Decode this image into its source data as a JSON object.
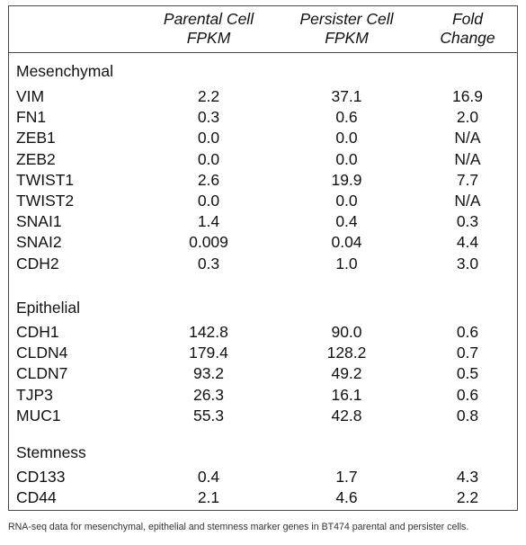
{
  "header": {
    "col1": [
      "Parental Cell",
      "FPKM"
    ],
    "col2": [
      "Persister Cell",
      "FPKM"
    ],
    "col3": [
      "Fold",
      "Change"
    ]
  },
  "sections": [
    {
      "title": "Mesenchymal",
      "rows": [
        {
          "gene": "VIM",
          "parental": "2.2",
          "persister": "37.1",
          "fold": "16.9"
        },
        {
          "gene": "FN1",
          "parental": "0.3",
          "persister": "0.6",
          "fold": "2.0"
        },
        {
          "gene": "ZEB1",
          "parental": "0.0",
          "persister": "0.0",
          "fold": "N/A"
        },
        {
          "gene": "ZEB2",
          "parental": "0.0",
          "persister": "0.0",
          "fold": "N/A"
        },
        {
          "gene": "TWIST1",
          "parental": "2.6",
          "persister": "19.9",
          "fold": "7.7"
        },
        {
          "gene": "TWIST2",
          "parental": "0.0",
          "persister": "0.0",
          "fold": "N/A"
        },
        {
          "gene": "SNAI1",
          "parental": "1.4",
          "persister": "0.4",
          "fold": "0.3"
        },
        {
          "gene": "SNAI2",
          "parental": "0.009",
          "persister": "0.04",
          "fold": "4.4"
        },
        {
          "gene": "CDH2",
          "parental": "0.3",
          "persister": "1.0",
          "fold": "3.0"
        }
      ]
    },
    {
      "title": "Epithelial",
      "rows": [
        {
          "gene": "CDH1",
          "parental": "142.8",
          "persister": "90.0",
          "fold": "0.6"
        },
        {
          "gene": "CLDN4",
          "parental": "179.4",
          "persister": "128.2",
          "fold": "0.7"
        },
        {
          "gene": "CLDN7",
          "parental": "93.2",
          "persister": "49.2",
          "fold": "0.5"
        },
        {
          "gene": "TJP3",
          "parental": "26.3",
          "persister": "16.1",
          "fold": "0.6"
        },
        {
          "gene": "MUC1",
          "parental": "55.3",
          "persister": "42.8",
          "fold": "0.8"
        }
      ]
    },
    {
      "title": "Stemness",
      "rows": [
        {
          "gene": "CD133",
          "parental": "0.4",
          "persister": "1.7",
          "fold": "4.3"
        },
        {
          "gene": "CD44",
          "parental": "2.1",
          "persister": "4.6",
          "fold": "2.2"
        }
      ]
    }
  ],
  "caption": "RNA-seq data for mesenchymal, epithelial and stemness marker genes in BT474 parental and persister cells."
}
